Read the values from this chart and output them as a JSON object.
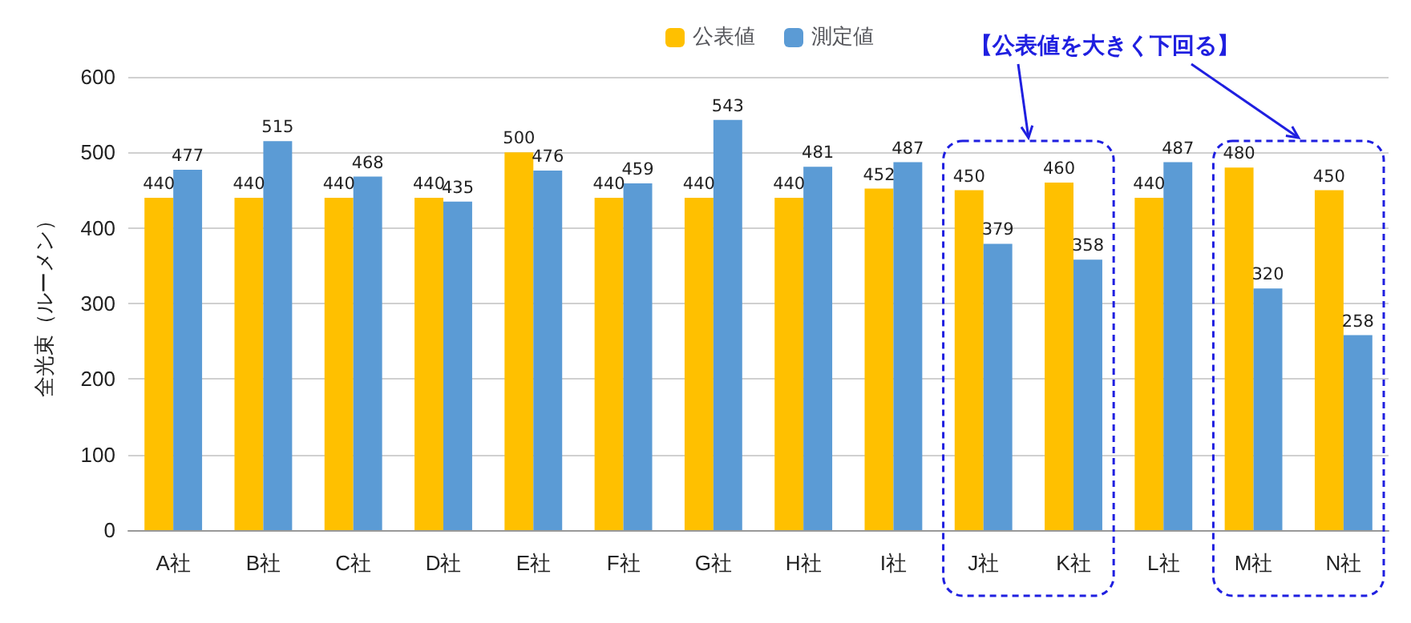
{
  "chart_data": {
    "type": "bar",
    "ylabel": "全光束（ルーメン）",
    "categories": [
      "A社",
      "B社",
      "C社",
      "D社",
      "E社",
      "F社",
      "G社",
      "H社",
      "I社",
      "J社",
      "K社",
      "L社",
      "M社",
      "N社"
    ],
    "series": [
      {
        "name": "公表値",
        "color": "#ffc000",
        "values": [
          440,
          440,
          440,
          440,
          500,
          440,
          440,
          440,
          452,
          450,
          460,
          440,
          480,
          450
        ]
      },
      {
        "name": "測定値",
        "color": "#5b9bd5",
        "values": [
          477,
          515,
          468,
          435,
          476,
          459,
          543,
          481,
          487,
          379,
          358,
          487,
          320,
          258
        ]
      }
    ],
    "ylim": [
      0,
      600
    ],
    "yticks": [
      0,
      100,
      200,
      300,
      400,
      500,
      600
    ],
    "grid": "y",
    "legend": "top",
    "data_labels": true,
    "annotations": [
      "【公表値を大きく下回る】"
    ]
  }
}
